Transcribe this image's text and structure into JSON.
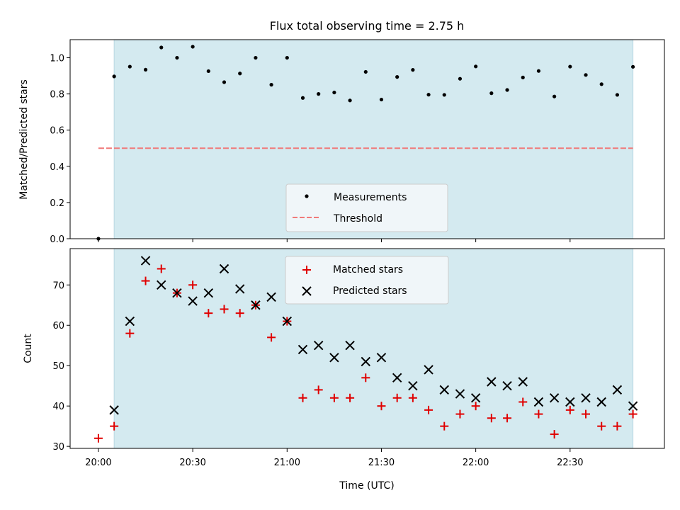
{
  "chart_data": [
    {
      "type": "scatter",
      "title": "Flux total observing time = 2.75 h",
      "ylabel": "Matched/Predicted stars",
      "xlabel": "",
      "xlim_minutes_after_20": [
        -9,
        180
      ],
      "ylim": [
        0,
        1.1
      ],
      "yticks": [
        "0.0",
        "0.2",
        "0.4",
        "0.6",
        "0.8",
        "1.0"
      ],
      "grid": false,
      "shaded_span": [
        "20:05",
        "22:50"
      ],
      "shade_color": "#d4eaf0",
      "legend_location": "lower center",
      "series": [
        {
          "name": "Measurements",
          "marker": "dot",
          "color": "#000000",
          "x": [
            "20:00",
            "20:05",
            "20:10",
            "20:15",
            "20:20",
            "20:25",
            "20:30",
            "20:35",
            "20:40",
            "20:45",
            "20:50",
            "20:55",
            "21:00",
            "21:05",
            "21:10",
            "21:15",
            "21:20",
            "21:25",
            "21:30",
            "21:35",
            "21:40",
            "21:45",
            "21:50",
            "21:55",
            "22:00",
            "22:05",
            "22:10",
            "22:15",
            "22:20",
            "22:25",
            "22:30",
            "22:35",
            "22:40",
            "22:45",
            "22:50"
          ],
          "y": [
            0.0,
            0.897,
            0.951,
            0.934,
            1.057,
            1.0,
            1.061,
            0.926,
            0.865,
            0.913,
            1.0,
            0.851,
            1.0,
            0.778,
            0.8,
            0.808,
            0.764,
            0.922,
            0.769,
            0.894,
            0.933,
            0.796,
            0.795,
            0.884,
            0.952,
            0.804,
            0.822,
            0.891,
            0.927,
            0.786,
            0.951,
            0.905,
            0.854,
            0.795,
            0.95
          ]
        },
        {
          "name": "Threshold",
          "marker": "dashed-line",
          "color": "#f07a7a",
          "x": [
            "20:00",
            "22:50"
          ],
          "y": [
            0.5,
            0.5
          ]
        }
      ]
    },
    {
      "type": "scatter",
      "title": "",
      "ylabel": "Count",
      "xlabel": "Time (UTC)",
      "xlim_minutes_after_20": [
        -9,
        180
      ],
      "ylim": [
        29.5,
        79
      ],
      "yticks": [
        "30",
        "40",
        "50",
        "60",
        "70"
      ],
      "xticks": [
        "20:00",
        "20:30",
        "21:00",
        "21:30",
        "22:00",
        "22:30"
      ],
      "grid": false,
      "shaded_span": [
        "20:05",
        "22:50"
      ],
      "shade_color": "#d4eaf0",
      "legend_location": "upper center",
      "series": [
        {
          "name": "Matched stars",
          "marker": "plus",
          "color": "#e00000",
          "x": [
            "20:00",
            "20:05",
            "20:10",
            "20:15",
            "20:20",
            "20:25",
            "20:30",
            "20:35",
            "20:40",
            "20:45",
            "20:50",
            "20:55",
            "21:00",
            "21:05",
            "21:10",
            "21:15",
            "21:20",
            "21:25",
            "21:30",
            "21:35",
            "21:40",
            "21:45",
            "21:50",
            "21:55",
            "22:00",
            "22:05",
            "22:10",
            "22:15",
            "22:20",
            "22:25",
            "22:30",
            "22:35",
            "22:40",
            "22:45",
            "22:50"
          ],
          "y": [
            32,
            35,
            58,
            71,
            74,
            68,
            70,
            63,
            64,
            63,
            65,
            57,
            61,
            42,
            44,
            42,
            42,
            47,
            40,
            42,
            42,
            39,
            35,
            38,
            40,
            37,
            37,
            41,
            38,
            33,
            39,
            38,
            35,
            35,
            38
          ]
        },
        {
          "name": "Predicted stars",
          "marker": "x",
          "color": "#000000",
          "x": [
            "20:05",
            "20:10",
            "20:15",
            "20:20",
            "20:25",
            "20:30",
            "20:35",
            "20:40",
            "20:45",
            "20:50",
            "20:55",
            "21:00",
            "21:05",
            "21:10",
            "21:15",
            "21:20",
            "21:25",
            "21:30",
            "21:35",
            "21:40",
            "21:45",
            "21:50",
            "21:55",
            "22:00",
            "22:05",
            "22:10",
            "22:15",
            "22:20",
            "22:25",
            "22:30",
            "22:35",
            "22:40",
            "22:45",
            "22:50"
          ],
          "y": [
            39,
            61,
            76,
            70,
            68,
            66,
            68,
            74,
            69,
            65,
            67,
            61,
            54,
            55,
            52,
            55,
            51,
            52,
            47,
            45,
            49,
            44,
            43,
            42,
            46,
            45,
            46,
            41,
            42,
            41,
            42,
            41,
            44,
            40
          ]
        }
      ]
    }
  ]
}
